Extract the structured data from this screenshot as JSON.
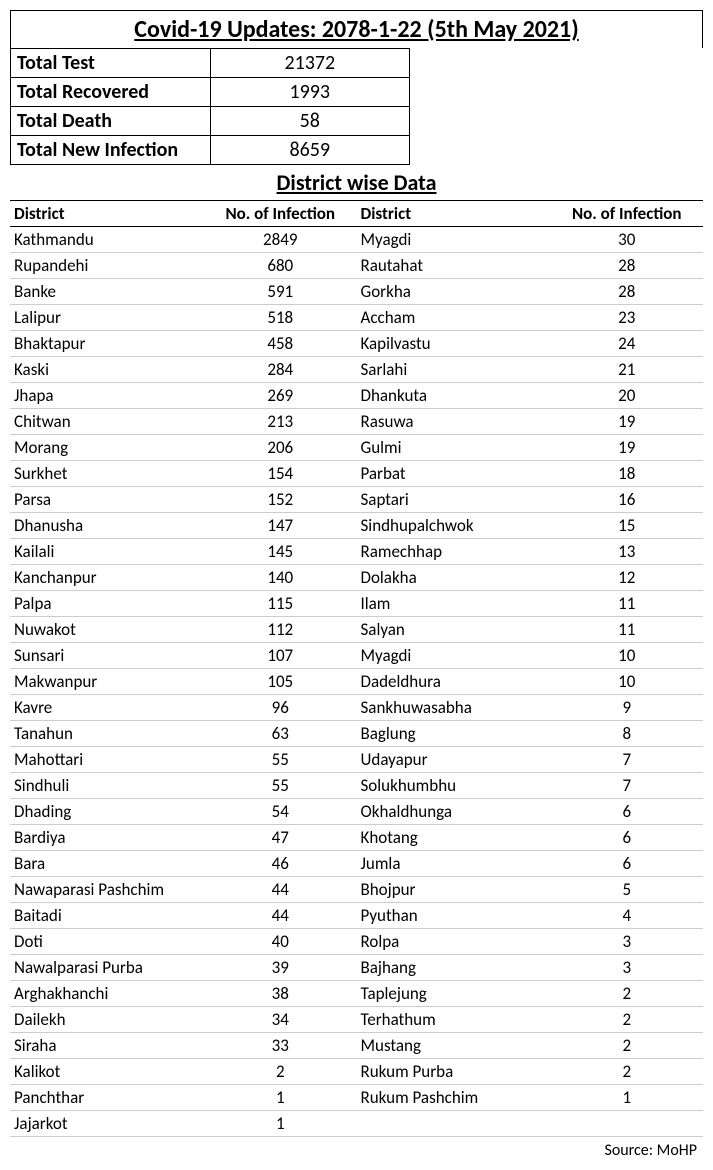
{
  "title": "Covid-19 Updates: 2078-1-22 (5th May 2021)",
  "summary": {
    "rows": [
      {
        "label": "Total Test",
        "value": "21372"
      },
      {
        "label": "Total Recovered",
        "value": "1993"
      },
      {
        "label": "Total Death",
        "value": "58"
      },
      {
        "label": "Total New Infection",
        "value": "8659"
      }
    ]
  },
  "subtitle": "District wise Data",
  "district_header": {
    "col1": "District",
    "col2": "No. of Infection",
    "col3": "District",
    "col4": "No. of Infection"
  },
  "district_rows": [
    {
      "d1": "Kathmandu",
      "n1": "2849",
      "d2": "Myagdi",
      "n2": "30"
    },
    {
      "d1": "Rupandehi",
      "n1": "680",
      "d2": "Rautahat",
      "n2": "28"
    },
    {
      "d1": "Banke",
      "n1": "591",
      "d2": "Gorkha",
      "n2": "28"
    },
    {
      "d1": "Lalipur",
      "n1": "518",
      "d2": "Accham",
      "n2": "23"
    },
    {
      "d1": "Bhaktapur",
      "n1": "458",
      "d2": "Kapilvastu",
      "n2": "24"
    },
    {
      "d1": "Kaski",
      "n1": "284",
      "d2": "Sarlahi",
      "n2": "21"
    },
    {
      "d1": "Jhapa",
      "n1": "269",
      "d2": "Dhankuta",
      "n2": "20"
    },
    {
      "d1": "Chitwan",
      "n1": "213",
      "d2": "Rasuwa",
      "n2": "19"
    },
    {
      "d1": "Morang",
      "n1": "206",
      "d2": "Gulmi",
      "n2": "19"
    },
    {
      "d1": "Surkhet",
      "n1": "154",
      "d2": "Parbat",
      "n2": "18"
    },
    {
      "d1": "Parsa",
      "n1": "152",
      "d2": "Saptari",
      "n2": "16"
    },
    {
      "d1": "Dhanusha",
      "n1": "147",
      "d2": "Sindhupalchwok",
      "n2": "15"
    },
    {
      "d1": "Kailali",
      "n1": "145",
      "d2": "Ramechhap",
      "n2": "13"
    },
    {
      "d1": "Kanchanpur",
      "n1": "140",
      "d2": "Dolakha",
      "n2": "12"
    },
    {
      "d1": "Palpa",
      "n1": "115",
      "d2": "Ilam",
      "n2": "11"
    },
    {
      "d1": "Nuwakot",
      "n1": "112",
      "d2": "Salyan",
      "n2": "11"
    },
    {
      "d1": "Sunsari",
      "n1": "107",
      "d2": "Myagdi",
      "n2": "10"
    },
    {
      "d1": "Makwanpur",
      "n1": "105",
      "d2": "Dadeldhura",
      "n2": "10"
    },
    {
      "d1": "Kavre",
      "n1": "96",
      "d2": "Sankhuwasabha",
      "n2": "9"
    },
    {
      "d1": "Tanahun",
      "n1": "63",
      "d2": "Baglung",
      "n2": "8"
    },
    {
      "d1": "Mahottari",
      "n1": "55",
      "d2": "Udayapur",
      "n2": "7"
    },
    {
      "d1": "Sindhuli",
      "n1": "55",
      "d2": "Solukhumbhu",
      "n2": "7"
    },
    {
      "d1": "Dhading",
      "n1": "54",
      "d2": "Okhaldhunga",
      "n2": "6"
    },
    {
      "d1": "Bardiya",
      "n1": "47",
      "d2": "Khotang",
      "n2": "6"
    },
    {
      "d1": "Bara",
      "n1": "46",
      "d2": "Jumla",
      "n2": "6"
    },
    {
      "d1": "Nawaparasi Pashchim",
      "n1": "44",
      "d2": "Bhojpur",
      "n2": "5"
    },
    {
      "d1": "Baitadi",
      "n1": "44",
      "d2": "Pyuthan",
      "n2": "4"
    },
    {
      "d1": "Doti",
      "n1": "40",
      "d2": "Rolpa",
      "n2": "3"
    },
    {
      "d1": "Nawalparasi Purba",
      "n1": "39",
      "d2": "Bajhang",
      "n2": "3"
    },
    {
      "d1": "Arghakhanchi",
      "n1": "38",
      "d2": "Taplejung",
      "n2": "2"
    },
    {
      "d1": "Dailekh",
      "n1": "34",
      "d2": "Terhathum",
      "n2": "2"
    },
    {
      "d1": "Siraha",
      "n1": "33",
      "d2": "Mustang",
      "n2": "2"
    },
    {
      "d1": "Kalikot",
      "n1": "2",
      "d2": "Rukum Purba",
      "n2": "2"
    },
    {
      "d1": "Panchthar",
      "n1": "1",
      "d2": "Rukum Pashchim",
      "n2": "1"
    },
    {
      "d1": "Jajarkot",
      "n1": "1",
      "d2": "",
      "n2": ""
    }
  ],
  "source": "Source: MoHP"
}
